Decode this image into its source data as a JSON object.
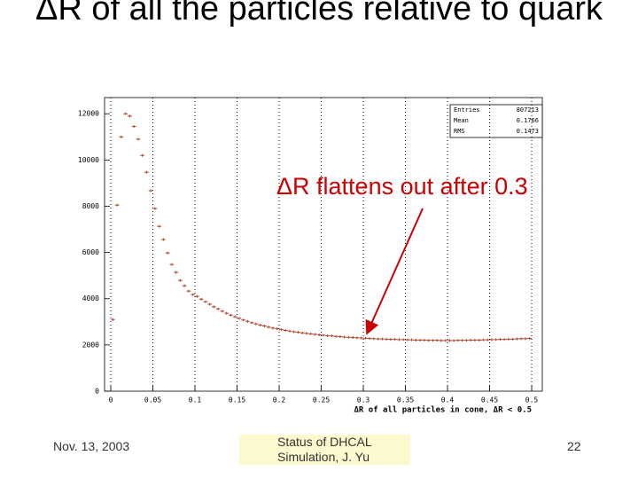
{
  "title": "ΔR of all the particles relative to quark",
  "footer": {
    "date": "Nov. 13, 2003",
    "center": "Status of DHCAL Simulation, J. Yu",
    "page": "22"
  },
  "chart_data": {
    "type": "histogram",
    "x_label": "ΔR of all particles in cone, ΔR < 0.5",
    "annotation": "ΔR flattens out after 0.3",
    "color": "#b0402a",
    "grid": true,
    "stats": [
      {
        "label": "Entries",
        "value": 807213
      },
      {
        "label": "Mean",
        "value": 0.1766
      },
      {
        "label": "RMS",
        "value": 0.1473
      }
    ],
    "xlim": [
      -0.0074,
      0.5126
    ],
    "ylim": [
      0,
      12700
    ],
    "xticks": [
      0,
      0.05,
      0.1,
      0.15,
      0.2,
      0.25,
      0.3,
      0.35,
      0.4,
      0.45,
      0.5
    ],
    "yticks": [
      0,
      2000,
      4000,
      6000,
      8000,
      10000,
      12000
    ],
    "bins": [
      0,
      0.005,
      0.01,
      0.015,
      0.02,
      0.025,
      0.03,
      0.035,
      0.04,
      0.045,
      0.05,
      0.055,
      0.06,
      0.065,
      0.07,
      0.075,
      0.08,
      0.085,
      0.09,
      0.095,
      0.1,
      0.105,
      0.11,
      0.115,
      0.12,
      0.125,
      0.13,
      0.135,
      0.14,
      0.145,
      0.15,
      0.155,
      0.16,
      0.165,
      0.17,
      0.175,
      0.18,
      0.185,
      0.19,
      0.195,
      0.2,
      0.205,
      0.21,
      0.215,
      0.22,
      0.225,
      0.23,
      0.235,
      0.24,
      0.245,
      0.25,
      0.255,
      0.26,
      0.265,
      0.27,
      0.275,
      0.28,
      0.285,
      0.29,
      0.295,
      0.3,
      0.305,
      0.31,
      0.315,
      0.32,
      0.325,
      0.33,
      0.335,
      0.34,
      0.345,
      0.35,
      0.355,
      0.36,
      0.365,
      0.37,
      0.375,
      0.38,
      0.385,
      0.39,
      0.395,
      0.4,
      0.405,
      0.41,
      0.415,
      0.42,
      0.425,
      0.43,
      0.435,
      0.44,
      0.445,
      0.45,
      0.455,
      0.46,
      0.465,
      0.47,
      0.475,
      0.48,
      0.485,
      0.49,
      0.495,
      0.5
    ],
    "values": [
      3100,
      8050,
      11000,
      12000,
      11900,
      11450,
      10900,
      10200,
      9470,
      8670,
      7900,
      7130,
      6560,
      5980,
      5480,
      5140,
      4790,
      4560,
      4330,
      4180,
      4100,
      3980,
      3870,
      3760,
      3650,
      3560,
      3460,
      3370,
      3290,
      3220,
      3150,
      3080,
      3020,
      2960,
      2910,
      2860,
      2820,
      2770,
      2730,
      2700,
      2660,
      2630,
      2600,
      2570,
      2550,
      2520,
      2500,
      2480,
      2460,
      2440,
      2420,
      2400,
      2390,
      2370,
      2360,
      2340,
      2330,
      2320,
      2310,
      2300,
      2290,
      2280,
      2270,
      2260,
      2260,
      2250,
      2240,
      2240,
      2230,
      2230,
      2220,
      2220,
      2210,
      2210,
      2210,
      2200,
      2200,
      2200,
      2190,
      2190,
      2190,
      2190,
      2200,
      2200,
      2200,
      2210,
      2210,
      2210,
      2220,
      2220,
      2230,
      2230,
      2240,
      2240,
      2250,
      2250,
      2260,
      2270,
      2270,
      2280
    ]
  }
}
